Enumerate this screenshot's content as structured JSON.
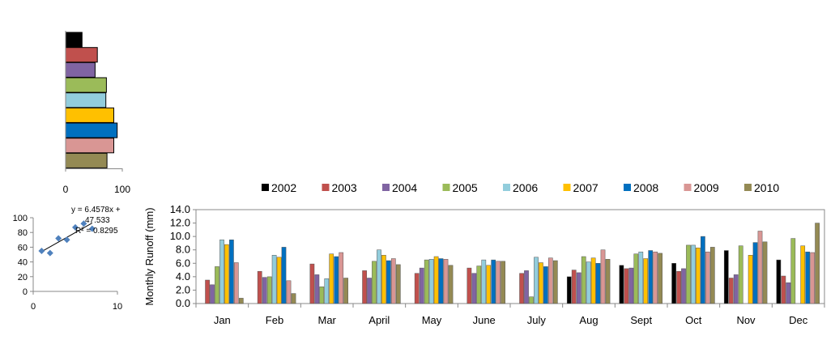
{
  "chart_data": [
    {
      "id": "annual-bars",
      "type": "bar",
      "orientation": "horizontal",
      "title": "",
      "categories": [
        "2002",
        "2003",
        "2004",
        "2005",
        "2006",
        "2007",
        "2008",
        "2009",
        "2010"
      ],
      "values": [
        29,
        56,
        52,
        72,
        71,
        85,
        91,
        85,
        73
      ],
      "colors": [
        "#000000",
        "#c0504d",
        "#8064a2",
        "#9bbb59",
        "#92cddc",
        "#ffc000",
        "#0070c0",
        "#d99694",
        "#948a54"
      ],
      "xlim": [
        0,
        100
      ],
      "xticks": [
        "0",
        "100"
      ],
      "grid": false,
      "legend": "none"
    },
    {
      "id": "regression-scatter",
      "type": "scatter",
      "x": [
        1,
        2,
        3,
        4,
        5,
        6,
        7
      ],
      "y": [
        55,
        52,
        72,
        70,
        87,
        92,
        85
      ],
      "xlim": [
        0,
        10
      ],
      "ylim": [
        0,
        100
      ],
      "xticks": [
        "0",
        "10"
      ],
      "yticks": [
        "0",
        "20",
        "40",
        "60",
        "80",
        "100"
      ],
      "trendline": {
        "slope": 6.4578,
        "intercept": 47.533
      },
      "equation_text": [
        "y = 6.4578x +",
        "47.533",
        "R² = 0.8295"
      ],
      "marker_color": "#4f81bd",
      "grid": false
    },
    {
      "id": "monthly-runoff",
      "type": "bar",
      "title": "",
      "categories": [
        "Jan",
        "Feb",
        "Mar",
        "April",
        "May",
        "June",
        "July",
        "Aug",
        "Sept",
        "Oct",
        "Nov",
        "Dec"
      ],
      "ylabel": "Monthly  Runoff (mm)",
      "ylim": [
        0,
        14
      ],
      "yticks": [
        "0.0",
        "2.0",
        "4.0",
        "6.0",
        "8.0",
        "10.0",
        "12.0",
        "14.0"
      ],
      "legend": "top",
      "grid": false,
      "series": [
        {
          "name": "2002",
          "color": "#000000",
          "values": [
            0,
            0,
            0,
            0,
            0,
            0,
            0,
            4.0,
            5.7,
            6.0,
            7.9,
            6.5
          ]
        },
        {
          "name": "2003",
          "color": "#c0504d",
          "values": [
            3.5,
            4.8,
            5.9,
            4.9,
            4.5,
            5.3,
            4.5,
            5.0,
            5.2,
            4.8,
            3.8,
            4.1
          ]
        },
        {
          "name": "2004",
          "color": "#8064a2",
          "values": [
            2.8,
            3.9,
            4.3,
            3.8,
            5.3,
            4.5,
            4.9,
            4.6,
            5.3,
            5.2,
            4.3,
            3.1
          ]
        },
        {
          "name": "2005",
          "color": "#9bbb59",
          "values": [
            5.5,
            4.0,
            2.5,
            6.3,
            6.5,
            5.6,
            1.0,
            7.0,
            7.4,
            8.7,
            8.6,
            9.7
          ]
        },
        {
          "name": "2006",
          "color": "#92cddc",
          "values": [
            9.5,
            7.2,
            3.7,
            8.0,
            6.6,
            6.5,
            6.9,
            6.2,
            7.7,
            8.7,
            0,
            0
          ]
        },
        {
          "name": "2007",
          "color": "#ffc000",
          "values": [
            8.8,
            6.9,
            7.4,
            7.2,
            7.0,
            5.7,
            6.1,
            6.8,
            6.7,
            8.3,
            7.2,
            8.6
          ]
        },
        {
          "name": "2008",
          "color": "#0070c0",
          "values": [
            9.5,
            8.4,
            7.0,
            6.4,
            6.7,
            6.5,
            5.5,
            6.0,
            7.9,
            10.0,
            9.1,
            7.7
          ]
        },
        {
          "name": "2009",
          "color": "#d99694",
          "values": [
            6.1,
            3.4,
            7.6,
            6.7,
            6.6,
            6.3,
            6.8,
            8.0,
            7.7,
            7.7,
            10.8,
            7.6
          ]
        },
        {
          "name": "2010",
          "color": "#948a54",
          "values": [
            0.8,
            1.5,
            3.8,
            5.8,
            5.7,
            6.3,
            6.4,
            6.6,
            7.5,
            8.4,
            9.2,
            12.0
          ]
        }
      ]
    }
  ]
}
